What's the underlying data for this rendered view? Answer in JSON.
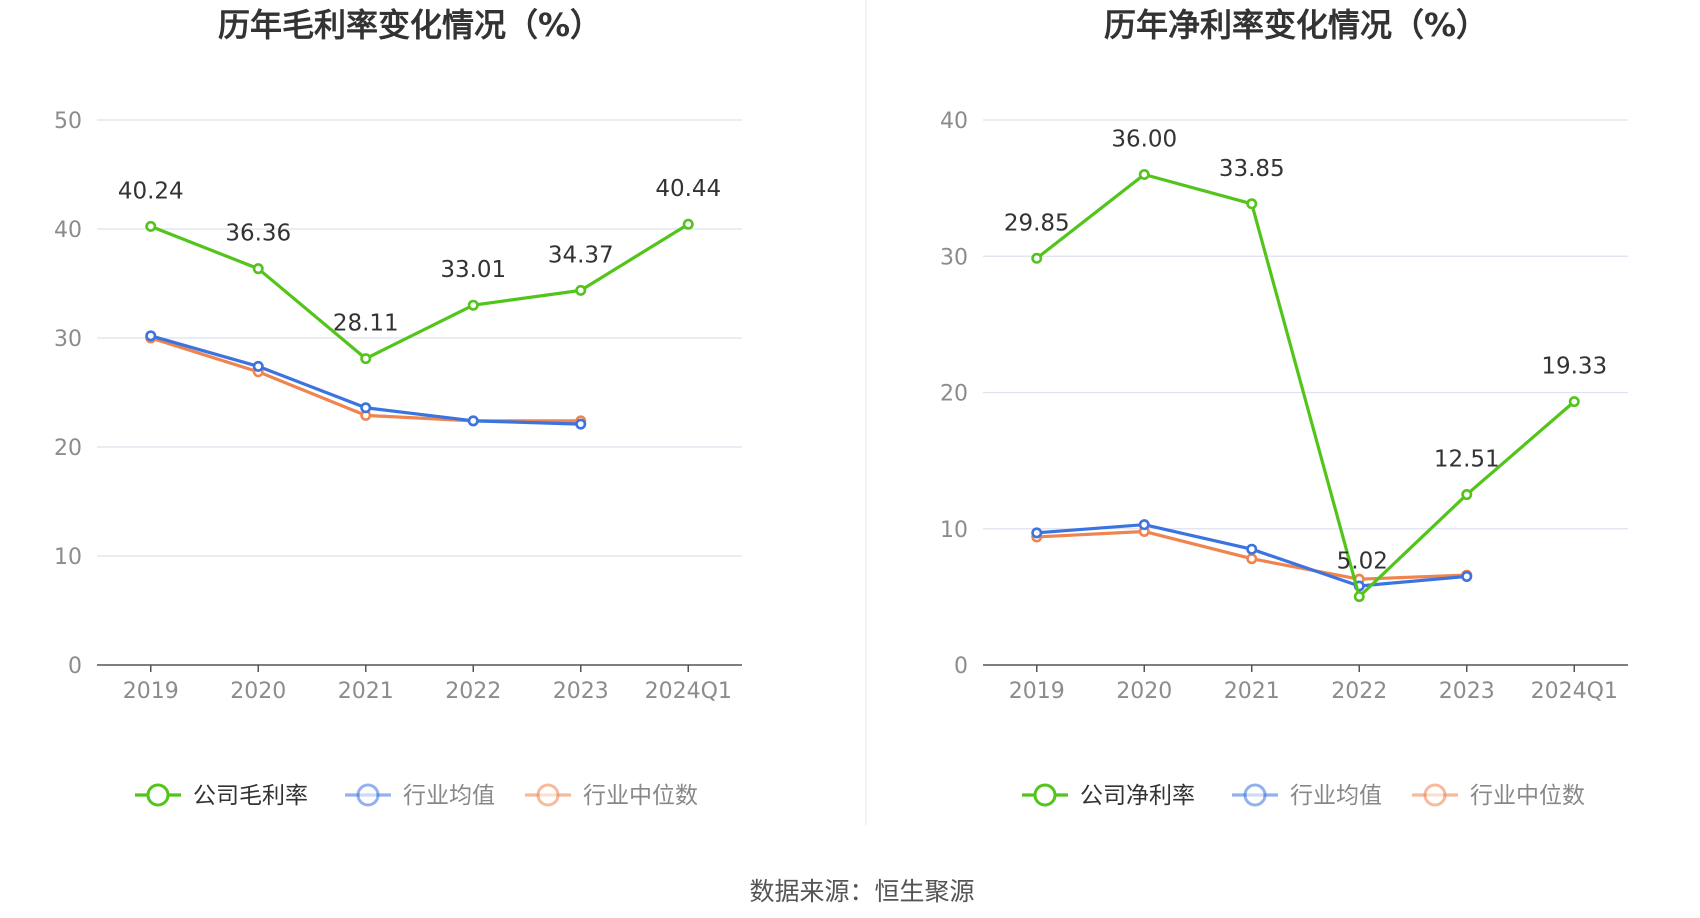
{
  "footer": {
    "source": "数据来源：恒生聚源"
  },
  "colors": {
    "company": "#52c41a",
    "avg": "#3b73e0",
    "median": "#f0844f",
    "grid": "#dde3ee",
    "axis": "#555555"
  },
  "chart_data": [
    {
      "type": "line",
      "title": "历年毛利率变化情况（%）",
      "categories": [
        "2019",
        "2020",
        "2021",
        "2022",
        "2023",
        "2024Q1"
      ],
      "ylim": [
        0,
        50
      ],
      "yticks": [
        0,
        10,
        20,
        30,
        40,
        50
      ],
      "grid": true,
      "legend_position": "bottom",
      "series": [
        {
          "name": "公司毛利率",
          "key": "company",
          "values": [
            40.24,
            36.36,
            28.11,
            33.01,
            34.37,
            40.44
          ],
          "labels": [
            "40.24",
            "36.36",
            "28.11",
            "33.01",
            "34.37",
            "40.44"
          ]
        },
        {
          "name": "行业均值",
          "key": "avg",
          "values": [
            30.2,
            27.4,
            23.6,
            22.4,
            22.1,
            null
          ]
        },
        {
          "name": "行业中位数",
          "key": "median",
          "values": [
            30.0,
            26.9,
            22.9,
            22.4,
            22.4,
            null
          ]
        }
      ]
    },
    {
      "type": "line",
      "title": "历年净利率变化情况（%）",
      "categories": [
        "2019",
        "2020",
        "2021",
        "2022",
        "2023",
        "2024Q1"
      ],
      "ylim": [
        0,
        40
      ],
      "yticks": [
        0,
        10,
        20,
        30,
        40
      ],
      "grid": true,
      "legend_position": "bottom",
      "series": [
        {
          "name": "公司净利率",
          "key": "company",
          "values": [
            29.85,
            36.0,
            33.85,
            5.02,
            12.51,
            19.33
          ],
          "labels": [
            "29.85",
            "36.00",
            "33.85",
            "5.02",
            "12.51",
            "19.33"
          ]
        },
        {
          "name": "行业均值",
          "key": "avg",
          "values": [
            9.7,
            10.3,
            8.5,
            5.8,
            6.5,
            null
          ]
        },
        {
          "name": "行业中位数",
          "key": "median",
          "values": [
            9.4,
            9.8,
            7.8,
            6.3,
            6.6,
            null
          ]
        }
      ]
    }
  ]
}
